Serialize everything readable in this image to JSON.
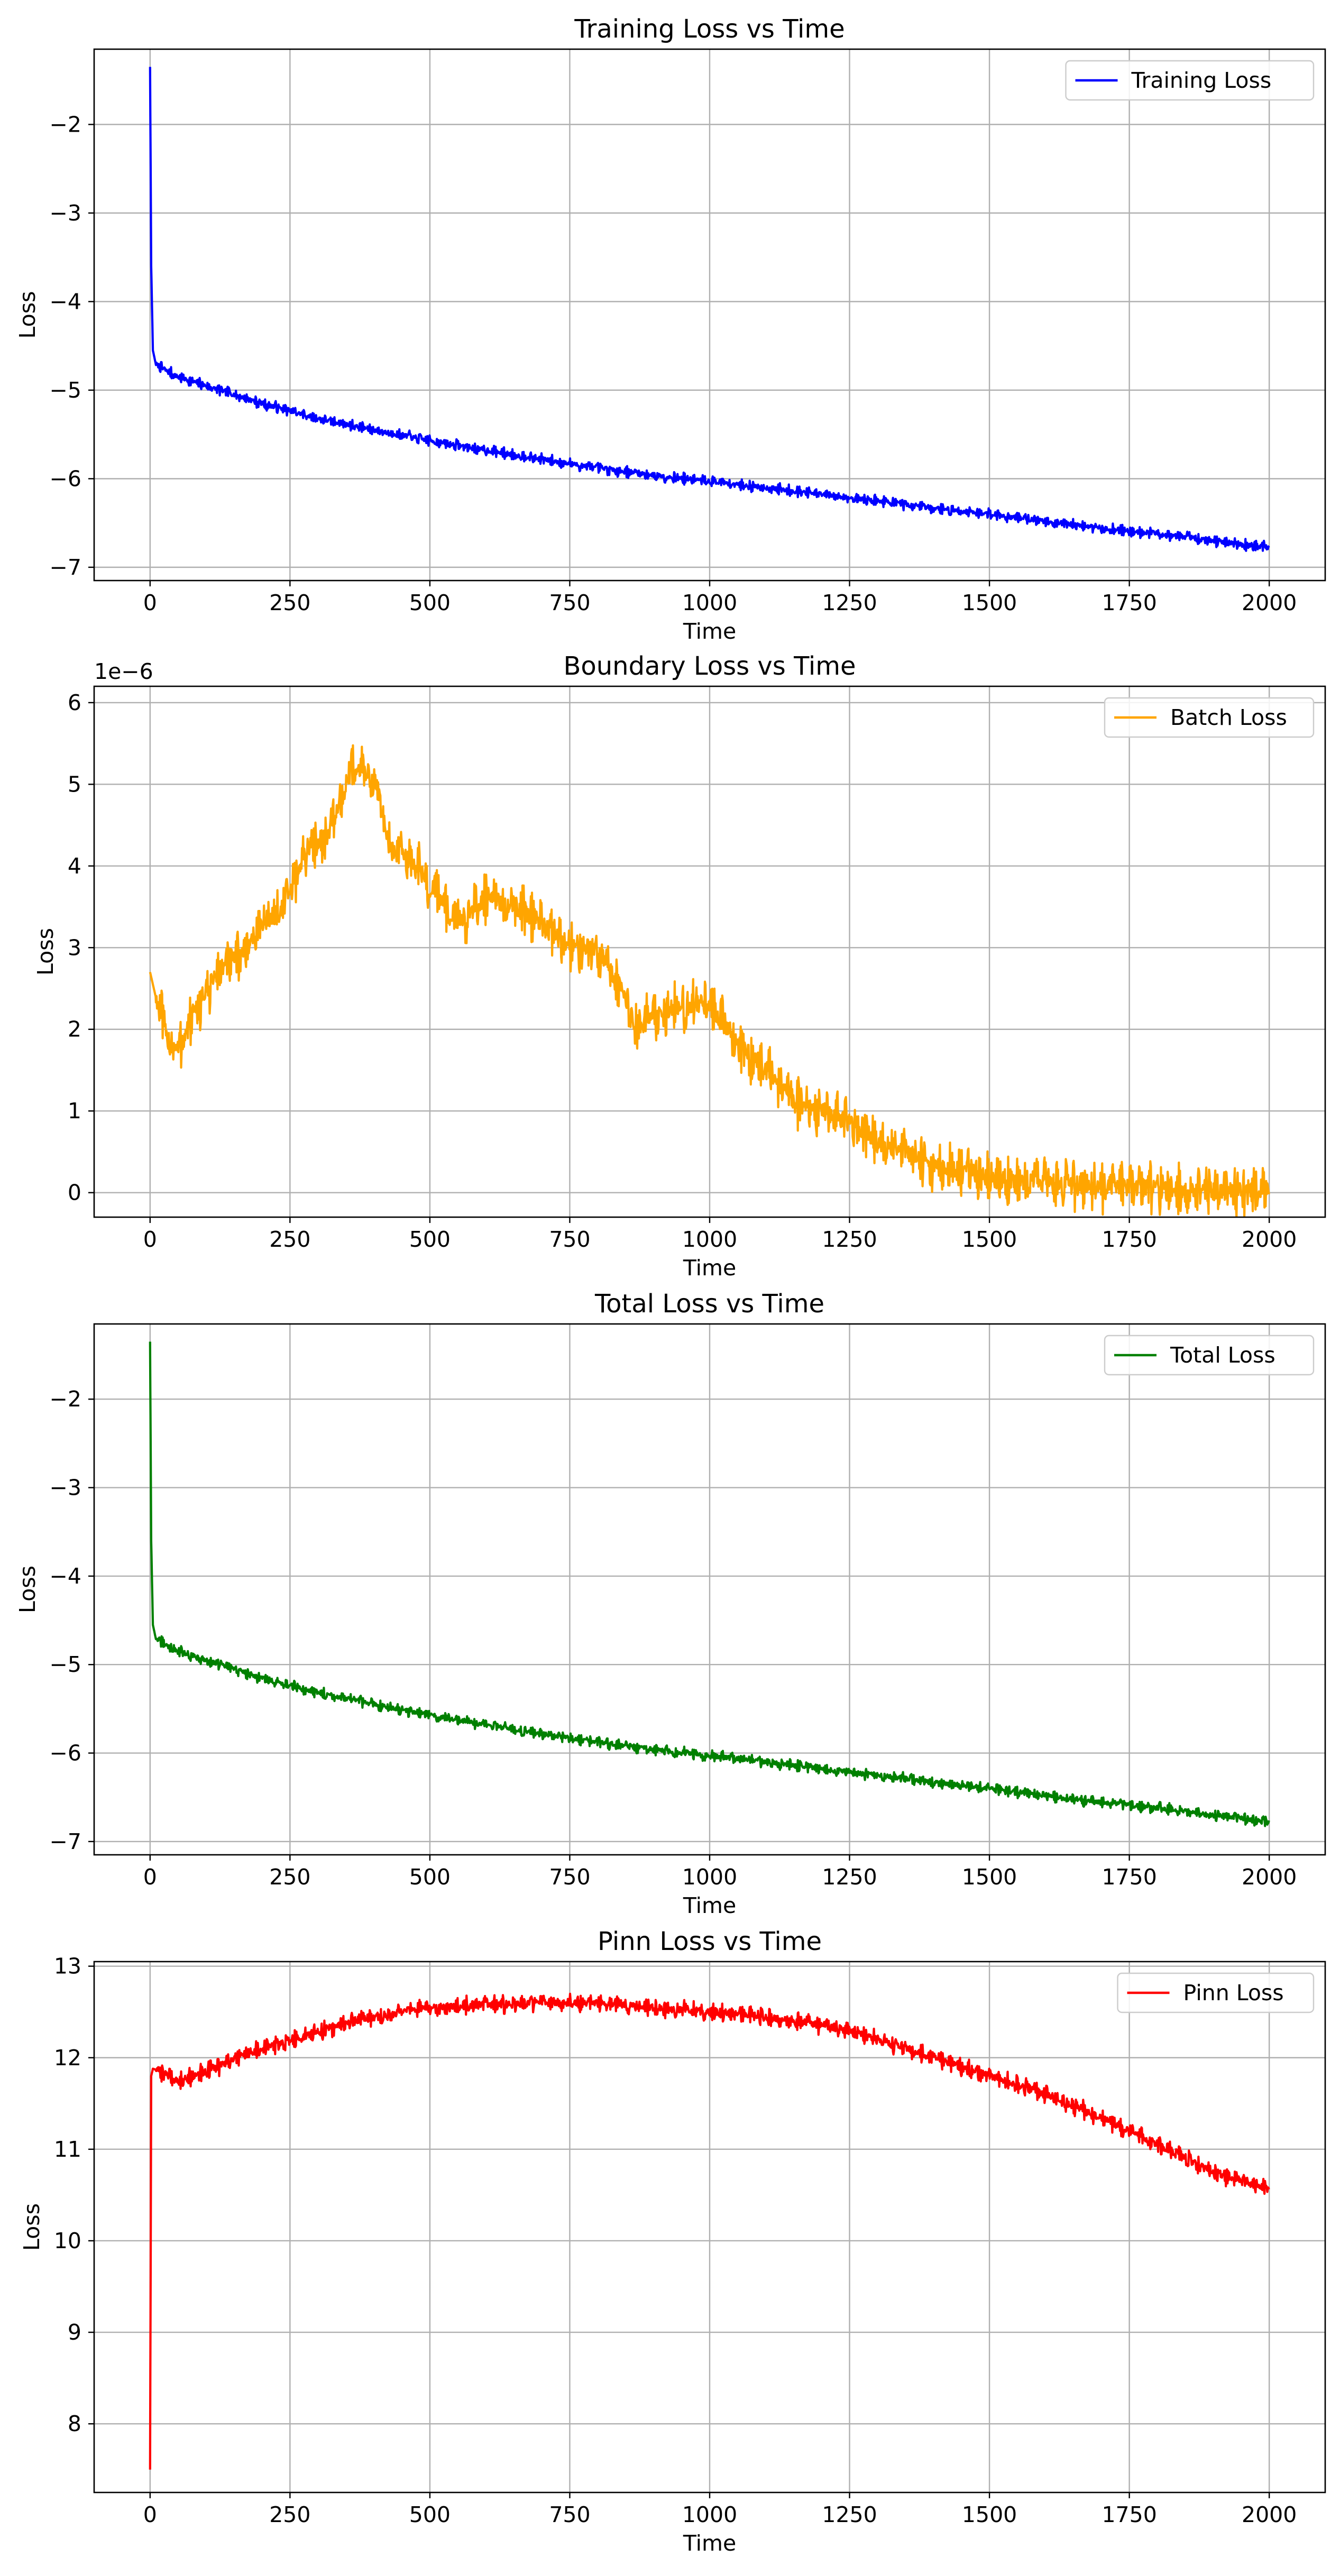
{
  "chart_data": [
    {
      "type": "line",
      "title": "Training Loss vs Time",
      "xlabel": "Time",
      "ylabel": "Loss",
      "xlim": [
        -100,
        2100
      ],
      "ylim": [
        -7.15,
        -1.15
      ],
      "xticks": [
        0,
        250,
        500,
        750,
        1000,
        1250,
        1500,
        1750,
        2000
      ],
      "xtick_labels": [
        "0",
        "250",
        "500",
        "750",
        "1000",
        "1250",
        "1500",
        "1750",
        "2000"
      ],
      "yticks": [
        -7,
        -6,
        -5,
        -4,
        -3,
        -2
      ],
      "ytick_labels": [
        "−7",
        "−6",
        "−5",
        "−4",
        "−3",
        "−2"
      ],
      "offset_text": "",
      "grid": true,
      "legend": "top-right",
      "series": [
        {
          "name": "Training Loss",
          "color": "#0000ff",
          "noise": 0.045,
          "x": [
            0,
            2,
            5,
            10,
            20,
            50,
            100,
            200,
            300,
            400,
            500,
            600,
            700,
            800,
            900,
            1000,
            1100,
            1200,
            1300,
            1400,
            1500,
            1600,
            1700,
            1800,
            1900,
            2000
          ],
          "y": [
            -1.35,
            -3.6,
            -4.55,
            -4.7,
            -4.75,
            -4.85,
            -4.95,
            -5.15,
            -5.32,
            -5.45,
            -5.57,
            -5.68,
            -5.78,
            -5.88,
            -5.96,
            -6.03,
            -6.1,
            -6.18,
            -6.25,
            -6.33,
            -6.4,
            -6.48,
            -6.56,
            -6.62,
            -6.7,
            -6.78
          ]
        }
      ]
    },
    {
      "type": "line",
      "title": "Boundary Loss vs Time",
      "xlabel": "Time",
      "ylabel": "Loss",
      "xlim": [
        -100,
        2100
      ],
      "ylim": [
        -3e-07,
        6.2e-06
      ],
      "xticks": [
        0,
        250,
        500,
        750,
        1000,
        1250,
        1500,
        1750,
        2000
      ],
      "xtick_labels": [
        "0",
        "250",
        "500",
        "750",
        "1000",
        "1250",
        "1500",
        "1750",
        "2000"
      ],
      "yticks": [
        0,
        1e-06,
        2e-06,
        3e-06,
        4e-06,
        5e-06,
        6e-06
      ],
      "ytick_labels": [
        "0",
        "1",
        "2",
        "3",
        "4",
        "5",
        "6"
      ],
      "offset_text": "1e−6",
      "grid": true,
      "legend": "top-right",
      "series": [
        {
          "name": "Batch Loss",
          "color": "#ffa500",
          "noise": 2.2e-07,
          "x": [
            0,
            10,
            30,
            50,
            80,
            120,
            160,
            200,
            240,
            280,
            320,
            360,
            400,
            430,
            460,
            500,
            550,
            600,
            650,
            700,
            750,
            800,
            840,
            870,
            900,
            950,
            1000,
            1050,
            1100,
            1150,
            1200,
            1250,
            1300,
            1350,
            1400,
            1450,
            1500,
            1550,
            1600,
            1700,
            1800,
            1900,
            2000
          ],
          "y": [
            2.7e-06,
            2.4e-06,
            1.9e-06,
            1.75e-06,
            2.2e-06,
            2.7e-06,
            2.9e-06,
            3.3e-06,
            3.5e-06,
            4.2e-06,
            4.4e-06,
            5.2e-06,
            5.1e-06,
            4.2e-06,
            4.1e-06,
            3.8e-06,
            3.3e-06,
            3.6e-06,
            3.5e-06,
            3.3e-06,
            3e-06,
            3e-06,
            2.5e-06,
            2e-06,
            2.2e-06,
            2.3e-06,
            2.3e-06,
            1.8e-06,
            1.5e-06,
            1.1e-06,
            1e-06,
            8.5e-07,
            6.5e-07,
            5e-07,
            3.5e-07,
            2.7e-07,
            2e-07,
            1.4e-07,
            1.2e-07,
            7e-08,
            4e-08,
            2.5e-08,
            2e-08
          ]
        }
      ]
    },
    {
      "type": "line",
      "title": "Total Loss vs Time",
      "xlabel": "Time",
      "ylabel": "Loss",
      "xlim": [
        -100,
        2100
      ],
      "ylim": [
        -7.15,
        -1.15
      ],
      "xticks": [
        0,
        250,
        500,
        750,
        1000,
        1250,
        1500,
        1750,
        2000
      ],
      "xtick_labels": [
        "0",
        "250",
        "500",
        "750",
        "1000",
        "1250",
        "1500",
        "1750",
        "2000"
      ],
      "yticks": [
        -7,
        -6,
        -5,
        -4,
        -3,
        -2
      ],
      "ytick_labels": [
        "−7",
        "−6",
        "−5",
        "−4",
        "−3",
        "−2"
      ],
      "offset_text": "",
      "grid": true,
      "legend": "top-right",
      "series": [
        {
          "name": "Total Loss",
          "color": "#008000",
          "noise": 0.045,
          "x": [
            0,
            2,
            5,
            10,
            20,
            50,
            100,
            200,
            300,
            400,
            500,
            600,
            700,
            800,
            900,
            1000,
            1100,
            1200,
            1300,
            1400,
            1500,
            1600,
            1700,
            1800,
            1900,
            2000
          ],
          "y": [
            -1.35,
            -3.6,
            -4.55,
            -4.7,
            -4.75,
            -4.85,
            -4.95,
            -5.15,
            -5.32,
            -5.45,
            -5.57,
            -5.68,
            -5.78,
            -5.88,
            -5.96,
            -6.03,
            -6.1,
            -6.18,
            -6.25,
            -6.33,
            -6.4,
            -6.48,
            -6.56,
            -6.62,
            -6.7,
            -6.78
          ]
        }
      ]
    },
    {
      "type": "line",
      "title": "Pinn Loss vs Time",
      "xlabel": "Time",
      "ylabel": "Loss",
      "xlim": [
        -100,
        2100
      ],
      "ylim": [
        7.25,
        13.05
      ],
      "xticks": [
        0,
        250,
        500,
        750,
        1000,
        1250,
        1500,
        1750,
        2000
      ],
      "xtick_labels": [
        "0",
        "250",
        "500",
        "750",
        "1000",
        "1250",
        "1500",
        "1750",
        "2000"
      ],
      "yticks": [
        8,
        9,
        10,
        11,
        12,
        13
      ],
      "ytick_labels": [
        "8",
        "9",
        "10",
        "11",
        "12",
        "13"
      ],
      "offset_text": "",
      "grid": true,
      "legend": "top-right",
      "series": [
        {
          "name": "Pinn Loss",
          "color": "#ff0000",
          "noise": 0.07,
          "x": [
            0,
            2,
            5,
            20,
            50,
            100,
            150,
            200,
            250,
            300,
            350,
            400,
            500,
            600,
            700,
            750,
            800,
            900,
            1000,
            1100,
            1200,
            1250,
            1300,
            1400,
            1500,
            1600,
            1700,
            1800,
            1900,
            2000
          ],
          "y": [
            7.5,
            11.8,
            11.88,
            11.85,
            11.75,
            11.85,
            11.98,
            12.1,
            12.18,
            12.28,
            12.38,
            12.45,
            12.55,
            12.58,
            12.6,
            12.6,
            12.6,
            12.55,
            12.5,
            12.45,
            12.35,
            12.3,
            12.2,
            12.0,
            11.8,
            11.6,
            11.35,
            11.05,
            10.75,
            10.55
          ]
        }
      ]
    }
  ]
}
